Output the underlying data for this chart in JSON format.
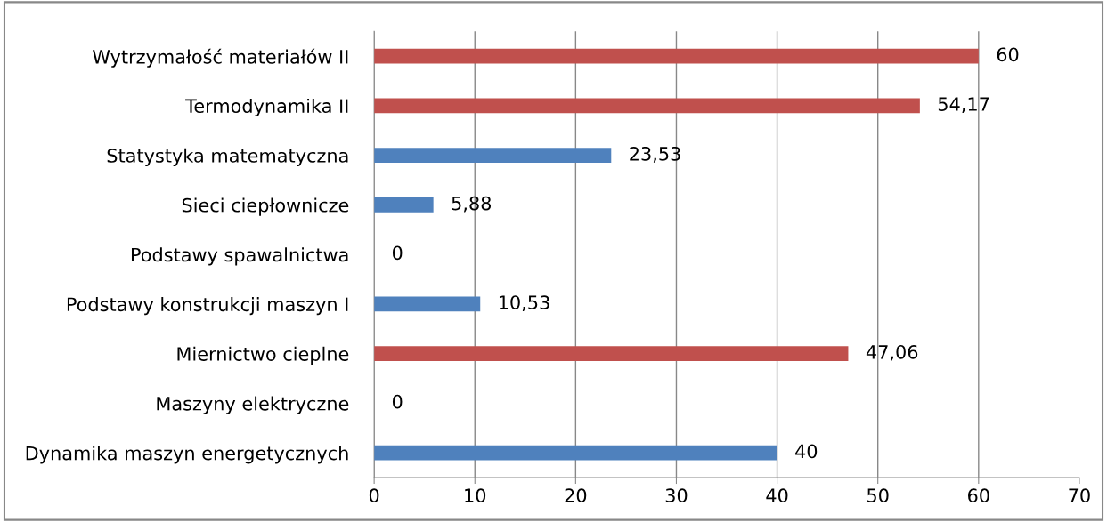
{
  "chart_data": {
    "type": "bar",
    "orientation": "horizontal",
    "categories": [
      "Wytrzymałość materiałów II",
      "Termodynamika II",
      "Statystyka matematyczna",
      "Sieci ciepłownicze",
      "Podstawy spawalnictwa",
      "Podstawy konstrukcji maszyn I",
      "Miernictwo cieplne",
      "Maszyny elektryczne",
      "Dynamika maszyn energetycznych"
    ],
    "values": [
      60,
      54.17,
      23.53,
      5.88,
      0,
      10.53,
      47.06,
      0,
      40
    ],
    "colors": [
      "#c0504d",
      "#c0504d",
      "#4f81bd",
      "#4f81bd",
      "#4f81bd",
      "#4f81bd",
      "#c0504d",
      "#4f81bd",
      "#4f81bd"
    ],
    "value_labels": [
      "60",
      "54,17",
      "23,53",
      "5,88",
      "0",
      "10,53",
      "47,06",
      "0",
      "40"
    ],
    "xlim": [
      0,
      70
    ],
    "xticks": [
      0,
      10,
      20,
      30,
      40,
      50,
      60,
      70
    ],
    "grid": "x"
  }
}
